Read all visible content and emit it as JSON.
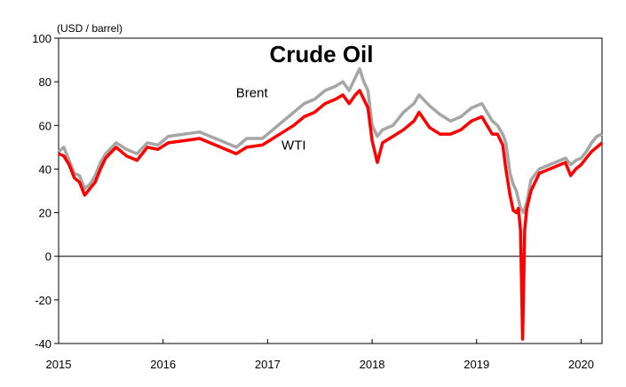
{
  "chart_data": {
    "type": "line",
    "title": "Crude Oil",
    "unit_label": "(USD / barrel)",
    "xlabel": "",
    "ylabel": "",
    "ylim": [
      -40,
      100
    ],
    "xlim": [
      2015,
      2020.2
    ],
    "y_ticks": [
      -40,
      -20,
      0,
      20,
      40,
      60,
      80,
      100
    ],
    "x_ticks": [
      2015,
      2016,
      2017,
      2018,
      2019,
      2020
    ],
    "grid": false,
    "legend": "inline labels",
    "series": [
      {
        "name": "Brent",
        "color": "#a6a6a6",
        "points": [
          [
            2015.0,
            48
          ],
          [
            2015.05,
            50
          ],
          [
            2015.1,
            44
          ],
          [
            2015.15,
            38
          ],
          [
            2015.2,
            37
          ],
          [
            2015.25,
            31
          ],
          [
            2015.3,
            33
          ],
          [
            2015.35,
            37
          ],
          [
            2015.4,
            43
          ],
          [
            2015.45,
            47
          ],
          [
            2015.55,
            52
          ],
          [
            2015.65,
            49
          ],
          [
            2015.75,
            47
          ],
          [
            2015.85,
            52
          ],
          [
            2015.95,
            51
          ],
          [
            2016.05,
            55
          ],
          [
            2016.2,
            56
          ],
          [
            2016.35,
            57
          ],
          [
            2016.5,
            54
          ],
          [
            2016.6,
            52
          ],
          [
            2016.7,
            50
          ],
          [
            2016.8,
            54
          ],
          [
            2016.95,
            54
          ],
          [
            2017.05,
            58
          ],
          [
            2017.15,
            62
          ],
          [
            2017.25,
            66
          ],
          [
            2017.35,
            70
          ],
          [
            2017.45,
            72
          ],
          [
            2017.55,
            76
          ],
          [
            2017.65,
            78
          ],
          [
            2017.72,
            80
          ],
          [
            2017.78,
            76
          ],
          [
            2017.84,
            82
          ],
          [
            2017.88,
            86
          ],
          [
            2017.92,
            80
          ],
          [
            2017.96,
            76
          ],
          [
            2018.0,
            60
          ],
          [
            2018.05,
            55
          ],
          [
            2018.1,
            58
          ],
          [
            2018.2,
            60
          ],
          [
            2018.3,
            66
          ],
          [
            2018.4,
            70
          ],
          [
            2018.45,
            74
          ],
          [
            2018.55,
            69
          ],
          [
            2018.65,
            65
          ],
          [
            2018.75,
            62
          ],
          [
            2018.85,
            64
          ],
          [
            2018.95,
            68
          ],
          [
            2019.05,
            70
          ],
          [
            2019.1,
            66
          ],
          [
            2019.15,
            62
          ],
          [
            2019.2,
            60
          ],
          [
            2019.25,
            56
          ],
          [
            2019.28,
            52
          ],
          [
            2019.32,
            38
          ],
          [
            2019.35,
            33
          ],
          [
            2019.38,
            30
          ],
          [
            2019.42,
            22
          ],
          [
            2019.45,
            20
          ],
          [
            2019.48,
            25
          ],
          [
            2019.52,
            35
          ],
          [
            2019.6,
            40
          ],
          [
            2019.7,
            42
          ],
          [
            2019.8,
            44
          ],
          [
            2019.85,
            45
          ],
          [
            2019.9,
            42
          ],
          [
            2019.95,
            44
          ],
          [
            2020.0,
            45
          ],
          [
            2020.05,
            48
          ],
          [
            2020.1,
            52
          ],
          [
            2020.15,
            55
          ],
          [
            2020.2,
            56
          ]
        ]
      },
      {
        "name": "WTI",
        "color": "#ff0000",
        "points": [
          [
            2015.0,
            47
          ],
          [
            2015.05,
            46
          ],
          [
            2015.1,
            42
          ],
          [
            2015.15,
            36
          ],
          [
            2015.2,
            34
          ],
          [
            2015.25,
            28
          ],
          [
            2015.3,
            31
          ],
          [
            2015.35,
            34
          ],
          [
            2015.4,
            40
          ],
          [
            2015.45,
            45
          ],
          [
            2015.55,
            50
          ],
          [
            2015.65,
            46
          ],
          [
            2015.75,
            44
          ],
          [
            2015.85,
            50
          ],
          [
            2015.95,
            49
          ],
          [
            2016.05,
            52
          ],
          [
            2016.2,
            53
          ],
          [
            2016.35,
            54
          ],
          [
            2016.5,
            51
          ],
          [
            2016.6,
            49
          ],
          [
            2016.7,
            47
          ],
          [
            2016.8,
            50
          ],
          [
            2016.95,
            51
          ],
          [
            2017.05,
            54
          ],
          [
            2017.15,
            57
          ],
          [
            2017.25,
            60
          ],
          [
            2017.35,
            64
          ],
          [
            2017.45,
            66
          ],
          [
            2017.55,
            70
          ],
          [
            2017.65,
            72
          ],
          [
            2017.72,
            74
          ],
          [
            2017.78,
            70
          ],
          [
            2017.84,
            74
          ],
          [
            2017.88,
            76
          ],
          [
            2017.92,
            72
          ],
          [
            2017.96,
            68
          ],
          [
            2018.0,
            53
          ],
          [
            2018.05,
            43
          ],
          [
            2018.1,
            52
          ],
          [
            2018.2,
            55
          ],
          [
            2018.3,
            58
          ],
          [
            2018.4,
            62
          ],
          [
            2018.45,
            66
          ],
          [
            2018.55,
            59
          ],
          [
            2018.65,
            56
          ],
          [
            2018.75,
            56
          ],
          [
            2018.85,
            58
          ],
          [
            2018.95,
            62
          ],
          [
            2019.05,
            64
          ],
          [
            2019.1,
            60
          ],
          [
            2019.15,
            56
          ],
          [
            2019.2,
            56
          ],
          [
            2019.25,
            51
          ],
          [
            2019.28,
            40
          ],
          [
            2019.32,
            28
          ],
          [
            2019.35,
            21
          ],
          [
            2019.38,
            20
          ],
          [
            2019.4,
            22
          ],
          [
            2019.42,
            12
          ],
          [
            2019.44,
            -38
          ],
          [
            2019.46,
            12
          ],
          [
            2019.48,
            22
          ],
          [
            2019.52,
            30
          ],
          [
            2019.6,
            38
          ],
          [
            2019.7,
            40
          ],
          [
            2019.8,
            42
          ],
          [
            2019.85,
            43
          ],
          [
            2019.9,
            37
          ],
          [
            2019.95,
            40
          ],
          [
            2020.0,
            42
          ],
          [
            2020.05,
            45
          ],
          [
            2020.1,
            48
          ],
          [
            2020.15,
            50
          ],
          [
            2020.2,
            52
          ]
        ]
      }
    ],
    "annotations": [
      {
        "text": "Brent",
        "x": 2016.85,
        "y": 73
      },
      {
        "text": "WTI",
        "x": 2017.25,
        "y": 49
      }
    ]
  }
}
